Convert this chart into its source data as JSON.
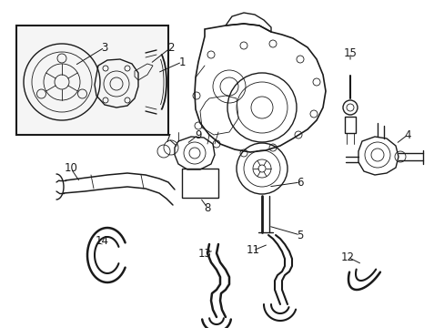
{
  "bg_color": "#ffffff",
  "line_color": "#1a1a1a",
  "fig_width": 4.89,
  "fig_height": 3.6,
  "dpi": 100,
  "label_fontsize": 8.5,
  "lw": 1.0,
  "tlw": 0.6
}
